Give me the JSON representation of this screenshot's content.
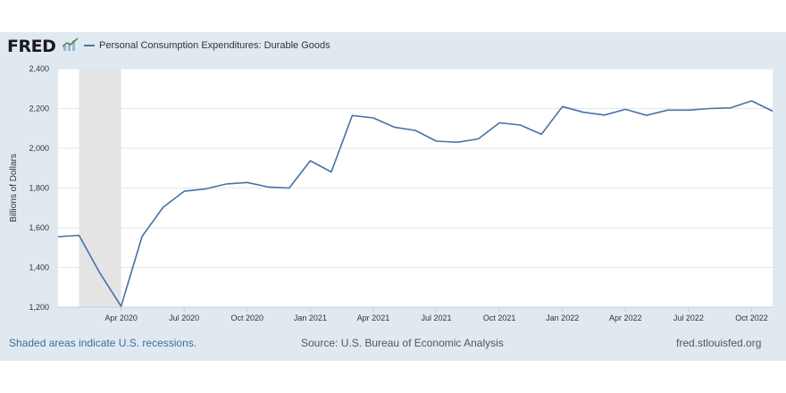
{
  "header": {
    "logo_text": "FRED",
    "logo_icon": "chart-trend-icon",
    "legend_label": "Personal Consumption Expenditures: Durable Goods"
  },
  "footer": {
    "note": "Shaded areas indicate U.S. recessions.",
    "source": "Source: U.S. Bureau of Economic Analysis",
    "url": "fred.stlouisfed.org"
  },
  "colors": {
    "line": "#4572a7",
    "panel_bg": "#e1e9f0",
    "recession": "#e4e4e4",
    "grid": "#e6e6e6"
  },
  "chart_data": {
    "type": "line",
    "title": "",
    "xlabel": "",
    "ylabel": "Billions of Dollars",
    "ylim": [
      1200,
      2400
    ],
    "yticks": [
      1200,
      1400,
      1600,
      1800,
      2000,
      2200,
      2400
    ],
    "ytick_labels": [
      "1,200",
      "1,400",
      "1,600",
      "1,800",
      "2,000",
      "2,200",
      "2,400"
    ],
    "xticks": [
      {
        "label": "Apr 2020",
        "x": "2020-04"
      },
      {
        "label": "Jul 2020",
        "x": "2020-07"
      },
      {
        "label": "Oct 2020",
        "x": "2020-10"
      },
      {
        "label": "Jan 2021",
        "x": "2021-01"
      },
      {
        "label": "Apr 2021",
        "x": "2021-04"
      },
      {
        "label": "Jul 2021",
        "x": "2021-07"
      },
      {
        "label": "Oct 2021",
        "x": "2021-10"
      },
      {
        "label": "Jan 2022",
        "x": "2022-01"
      },
      {
        "label": "Apr 2022",
        "x": "2022-04"
      },
      {
        "label": "Jul 2022",
        "x": "2022-07"
      },
      {
        "label": "Oct 2022",
        "x": "2022-10"
      }
    ],
    "recession": {
      "start": "2020-02",
      "end": "2020-04"
    },
    "grid": true,
    "series": [
      {
        "name": "Personal Consumption Expenditures: Durable Goods",
        "x": [
          "2020-01",
          "2020-02",
          "2020-03",
          "2020-04",
          "2020-05",
          "2020-06",
          "2020-07",
          "2020-08",
          "2020-09",
          "2020-10",
          "2020-11",
          "2020-12",
          "2021-01",
          "2021-02",
          "2021-03",
          "2021-04",
          "2021-05",
          "2021-06",
          "2021-07",
          "2021-08",
          "2021-09",
          "2021-10",
          "2021-11",
          "2021-12",
          "2022-01",
          "2022-02",
          "2022-03",
          "2022-04",
          "2022-05",
          "2022-06",
          "2022-07",
          "2022-08",
          "2022-09",
          "2022-10",
          "2022-11"
        ],
        "values": [
          1555,
          1562,
          1370,
          1205,
          1557,
          1703,
          1784,
          1795,
          1820,
          1828,
          1805,
          1800,
          1937,
          1881,
          2165,
          2153,
          2106,
          2090,
          2036,
          2030,
          2047,
          2128,
          2117,
          2070,
          2210,
          2181,
          2167,
          2196,
          2166,
          2192,
          2192,
          2200,
          2203,
          2238,
          2187
        ]
      }
    ]
  }
}
